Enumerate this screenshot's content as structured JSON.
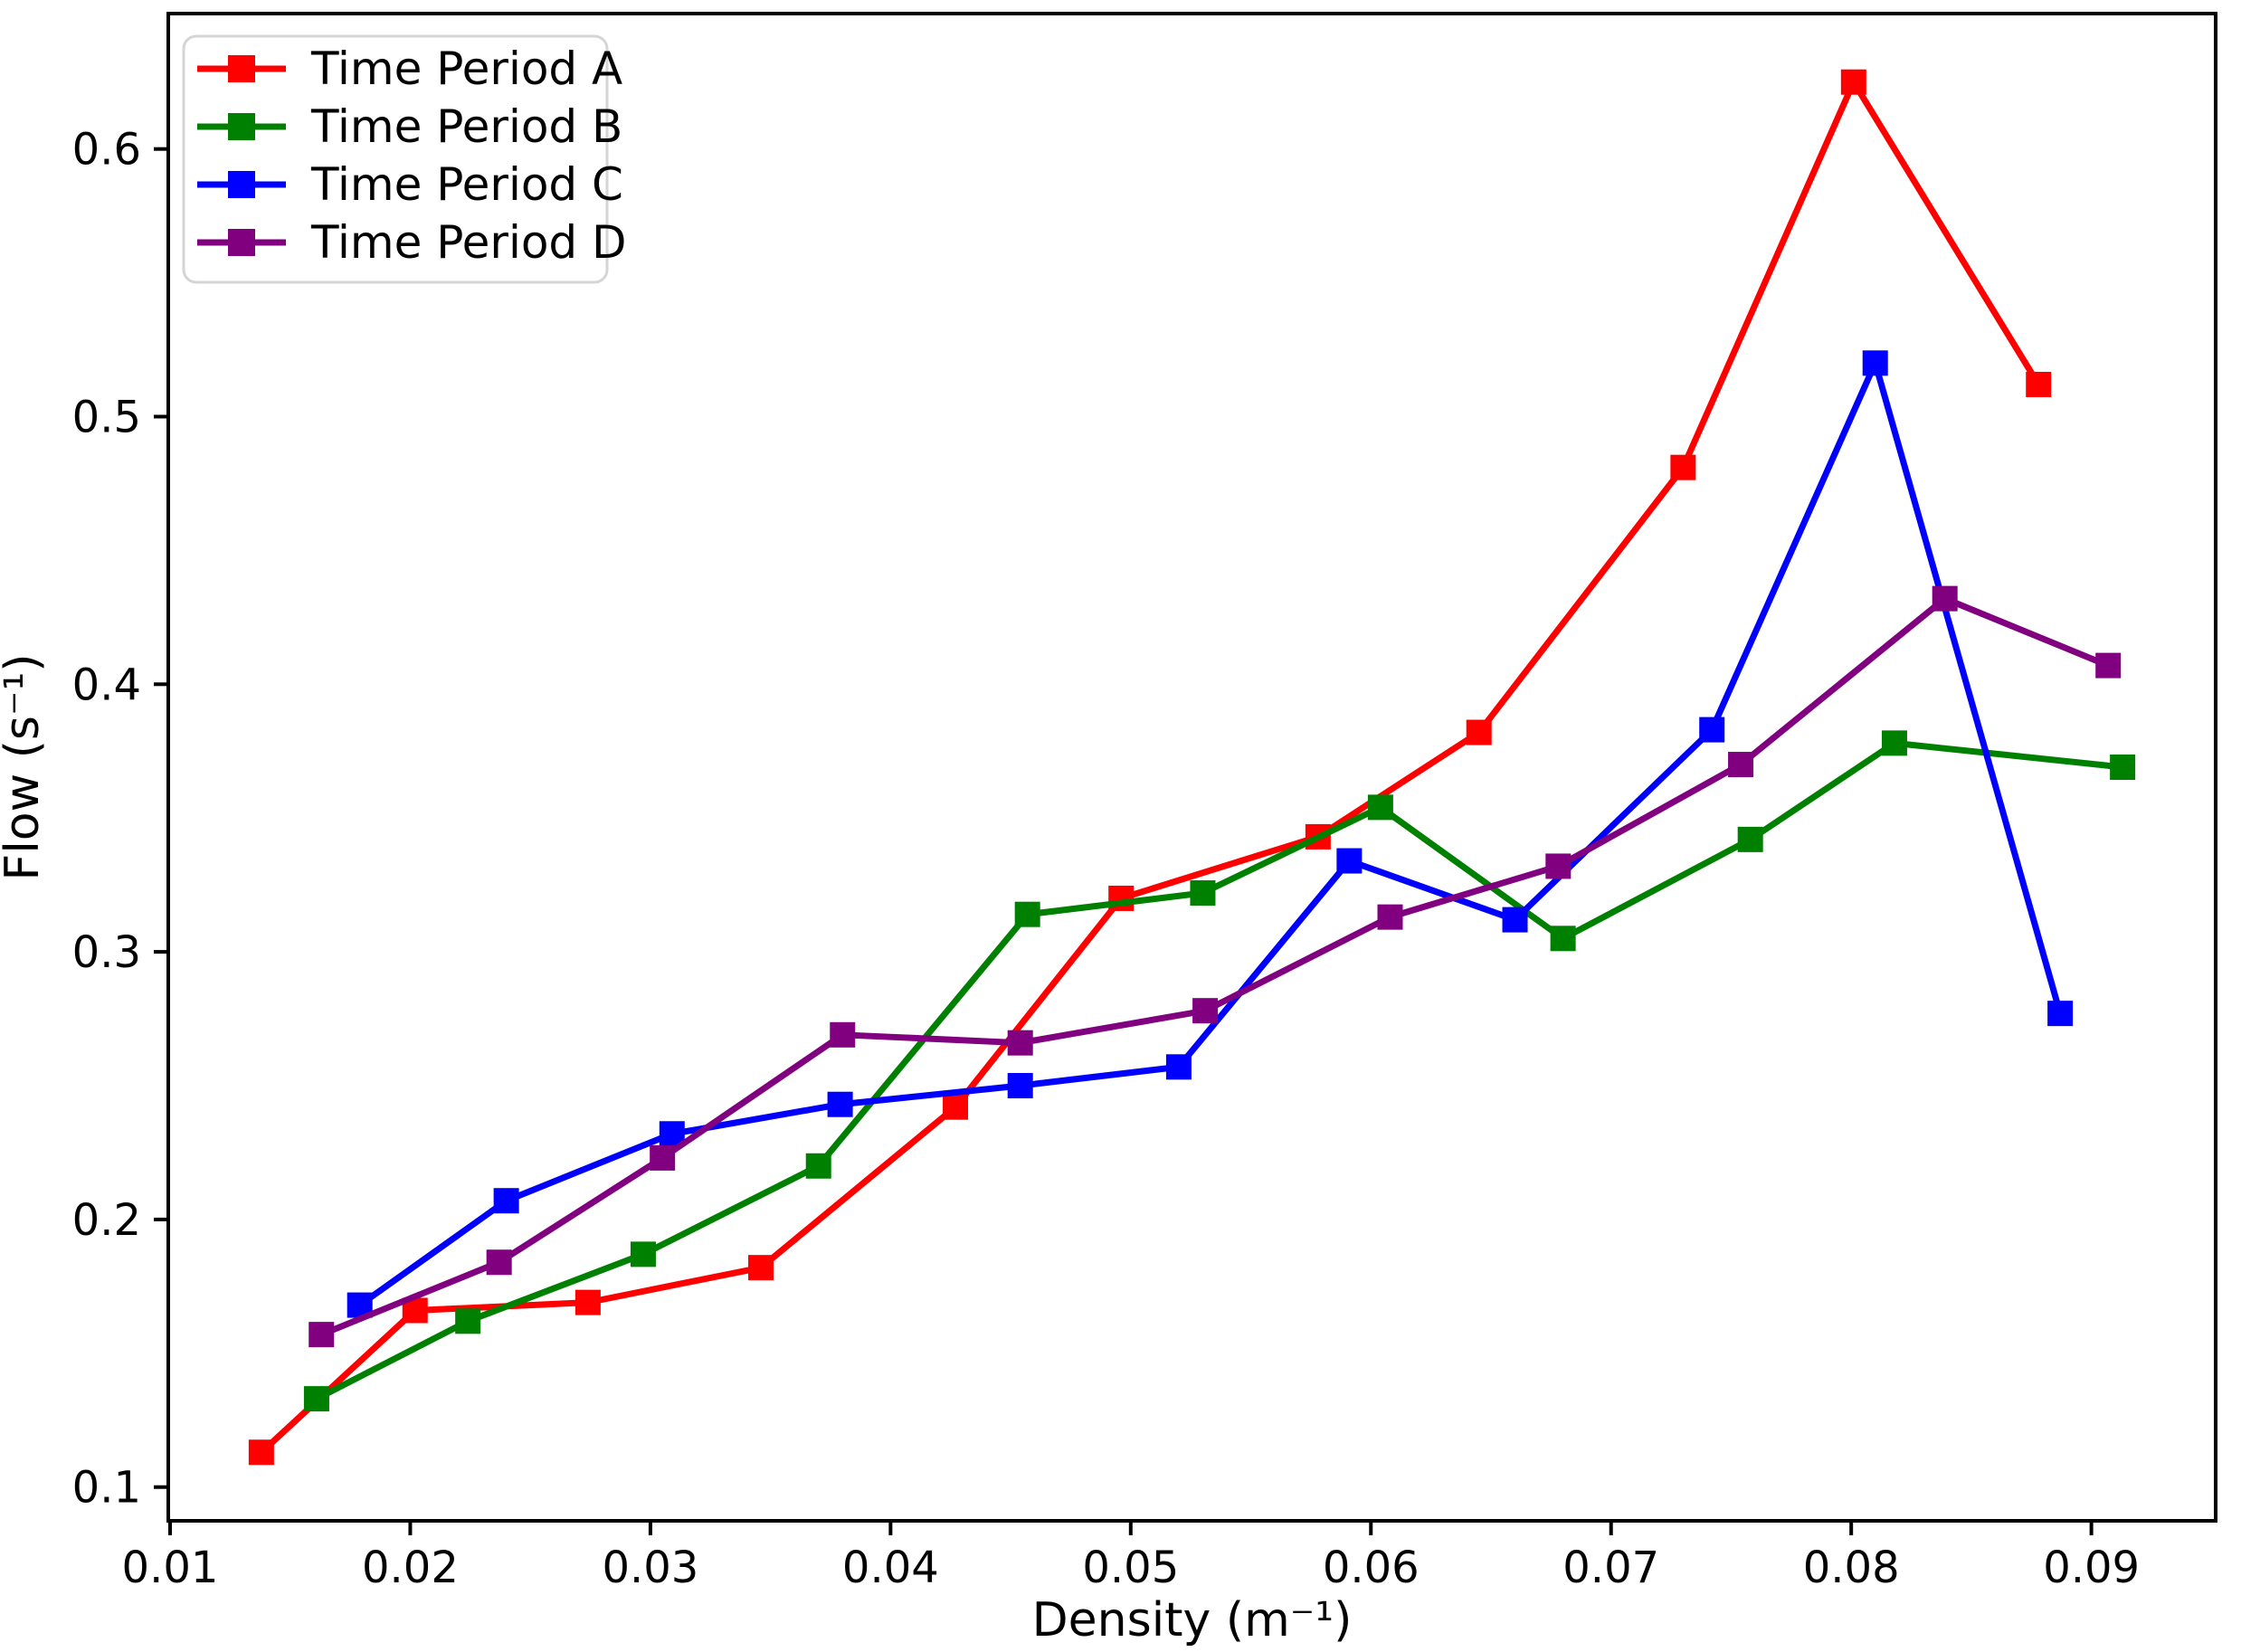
{
  "chart_data": {
    "type": "line",
    "title": "",
    "xlabel": "Density (m⁻¹)",
    "ylabel": "Flow (s⁻¹)",
    "xlim": [
      0.009925,
      0.095175
    ],
    "ylim": [
      0.0874,
      0.6506
    ],
    "x_ticks": [
      0.01,
      0.02,
      0.03,
      0.04,
      0.05,
      0.06,
      0.07,
      0.08,
      0.09
    ],
    "x_tick_labels": [
      "0.01",
      "0.02",
      "0.03",
      "0.04",
      "0.05",
      "0.06",
      "0.07",
      "0.08",
      "0.09"
    ],
    "y_ticks": [
      0.1,
      0.2,
      0.3,
      0.4,
      0.5,
      0.6
    ],
    "y_tick_labels": [
      "0.1",
      "0.2",
      "0.3",
      "0.4",
      "0.5",
      "0.6"
    ],
    "grid": false,
    "legend_position": "upper left",
    "marker": "square",
    "series": [
      {
        "name": "Time Period A",
        "color": "#ff0000",
        "x": [
          0.0138,
          0.0202,
          0.0274,
          0.0346,
          0.0427,
          0.0496,
          0.0578,
          0.0645,
          0.073,
          0.0801,
          0.0878
        ],
        "y": [
          0.113,
          0.166,
          0.169,
          0.182,
          0.242,
          0.32,
          0.343,
          0.382,
          0.481,
          0.625,
          0.512
        ]
      },
      {
        "name": "Time Period B",
        "color": "#008000",
        "x": [
          0.0161,
          0.0224,
          0.0297,
          0.037,
          0.0457,
          0.053,
          0.0604,
          0.068,
          0.0758,
          0.0818,
          0.0913
        ],
        "y": [
          0.133,
          0.162,
          0.187,
          0.22,
          0.314,
          0.322,
          0.354,
          0.305,
          0.342,
          0.378,
          0.369
        ]
      },
      {
        "name": "Time Period C",
        "color": "#0000ff",
        "x": [
          0.0179,
          0.024,
          0.0309,
          0.0379,
          0.0454,
          0.052,
          0.0591,
          0.066,
          0.0742,
          0.081,
          0.0887
        ],
        "y": [
          0.168,
          0.207,
          0.232,
          0.243,
          0.25,
          0.257,
          0.334,
          0.312,
          0.383,
          0.52,
          0.277
        ]
      },
      {
        "name": "Time Period D",
        "color": "#800080",
        "x": [
          0.0163,
          0.0237,
          0.0305,
          0.038,
          0.0454,
          0.0531,
          0.0608,
          0.0678,
          0.0754,
          0.0839,
          0.0907
        ],
        "y": [
          0.157,
          0.184,
          0.223,
          0.269,
          0.266,
          0.278,
          0.313,
          0.332,
          0.37,
          0.432,
          0.407
        ]
      }
    ],
    "legend_border_color": "#d5d5d5",
    "axis_color": "#000000"
  }
}
